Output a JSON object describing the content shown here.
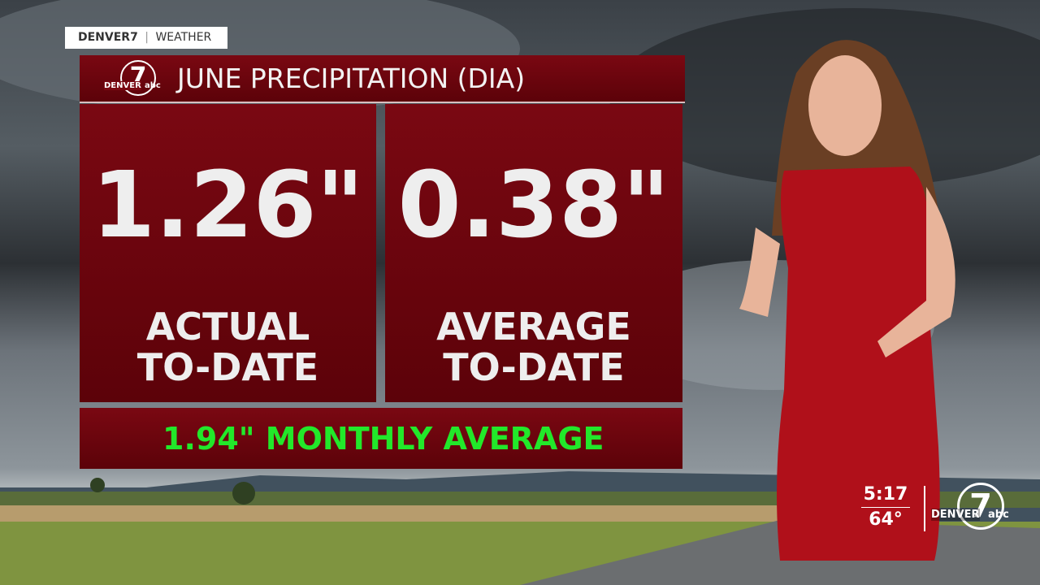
{
  "bug": {
    "brand": "DENVER7",
    "section": "WEATHER"
  },
  "graphic": {
    "logo": {
      "number": "7",
      "brand": "DENVER",
      "network": "abc"
    },
    "title": "JUNE PRECIPITATION (DIA)",
    "panels": [
      {
        "value": "1.26\"",
        "label_line1": "ACTUAL",
        "label_line2": "TO-DATE"
      },
      {
        "value": "0.38\"",
        "label_line1": "AVERAGE",
        "label_line2": "TO-DATE"
      }
    ],
    "footer": "1.94\" MONTHLY AVERAGE"
  },
  "corner": {
    "time": "5:17",
    "temperature": "64°",
    "logo": {
      "number": "7",
      "brand": "DENVER",
      "network": "abc"
    }
  }
}
